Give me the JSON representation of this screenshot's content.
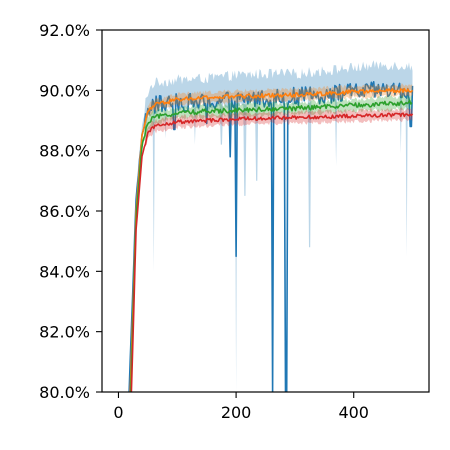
{
  "chart_data": {
    "type": "line",
    "title": "",
    "xlabel": "",
    "ylabel": "",
    "xlim": [
      -28,
      528
    ],
    "ylim": [
      80.0,
      92.0
    ],
    "x_ticks": [
      0,
      200,
      400
    ],
    "x_tick_labels": [
      "0",
      "200",
      "400"
    ],
    "y_ticks": [
      80,
      82,
      84,
      86,
      88,
      90,
      92
    ],
    "y_tick_labels": [
      "80.0%",
      "82.0%",
      "84.0%",
      "86.0%",
      "88.0%",
      "90.0%",
      "92.0%"
    ],
    "grid": false,
    "legend": "none",
    "series": [
      {
        "color": "#1f77b4",
        "band_points": [
          [
            18,
            80.0
          ],
          [
            30,
            86.6
          ],
          [
            40,
            88.7
          ],
          [
            50,
            89.5
          ],
          [
            60,
            89.8
          ],
          [
            100,
            89.9
          ],
          [
            150,
            89.95
          ],
          [
            200,
            90.05
          ],
          [
            250,
            90.1
          ],
          [
            300,
            90.1
          ],
          [
            350,
            90.2
          ],
          [
            400,
            90.3
          ],
          [
            450,
            90.4
          ],
          [
            500,
            90.35
          ]
        ],
        "band_halfwidth": 0.45,
        "line_points": [
          [
            18,
            80.0
          ],
          [
            30,
            86.4
          ],
          [
            40,
            88.5
          ],
          [
            50,
            89.3
          ],
          [
            60,
            89.5
          ],
          [
            100,
            89.6
          ],
          [
            150,
            89.6
          ],
          [
            200,
            89.7
          ],
          [
            250,
            89.75
          ],
          [
            300,
            89.8
          ],
          [
            350,
            89.85
          ],
          [
            400,
            89.95
          ],
          [
            450,
            90.0
          ],
          [
            500,
            89.95
          ]
        ],
        "line_noise": 0.3,
        "dips": [
          [
            200,
            84.5
          ],
          [
            262,
            80.0
          ],
          [
            285,
            80.0
          ],
          [
            190,
            87.8
          ],
          [
            95,
            88.7
          ],
          [
            150,
            88.9
          ],
          [
            497,
            88.8
          ]
        ],
        "band_dips": [
          [
            60,
            84.0
          ],
          [
            200,
            80.0
          ],
          [
            325,
            84.8
          ],
          [
            490,
            84.5
          ],
          [
            175,
            88.2
          ],
          [
            215,
            86.5
          ],
          [
            235,
            87.0
          ],
          [
            370,
            87.5
          ],
          [
            480,
            87.9
          ],
          [
            80,
            88.4
          ],
          [
            130,
            88.2
          ]
        ]
      },
      {
        "color": "#ff7f0e",
        "band_points": [
          [
            20,
            80.0
          ],
          [
            30,
            86.0
          ],
          [
            40,
            88.5
          ],
          [
            50,
            89.3
          ],
          [
            60,
            89.5
          ],
          [
            100,
            89.7
          ],
          [
            150,
            89.75
          ],
          [
            200,
            89.8
          ],
          [
            300,
            89.85
          ],
          [
            400,
            89.95
          ],
          [
            500,
            90.0
          ]
        ],
        "band_halfwidth": 0.18,
        "line_points": [
          [
            20,
            80.0
          ],
          [
            30,
            86.0
          ],
          [
            40,
            88.5
          ],
          [
            50,
            89.3
          ],
          [
            60,
            89.5
          ],
          [
            100,
            89.7
          ],
          [
            150,
            89.75
          ],
          [
            200,
            89.8
          ],
          [
            300,
            89.85
          ],
          [
            400,
            89.95
          ],
          [
            500,
            90.0
          ]
        ],
        "line_noise": 0.07,
        "dips": [],
        "band_dips": []
      },
      {
        "color": "#2ca02c",
        "band_points": [
          [
            21,
            80.0
          ],
          [
            30,
            85.8
          ],
          [
            40,
            88.2
          ],
          [
            50,
            88.9
          ],
          [
            60,
            89.1
          ],
          [
            100,
            89.25
          ],
          [
            150,
            89.3
          ],
          [
            200,
            89.35
          ],
          [
            300,
            89.4
          ],
          [
            400,
            89.5
          ],
          [
            500,
            89.6
          ]
        ],
        "band_halfwidth": 0.2,
        "line_points": [
          [
            21,
            80.0
          ],
          [
            30,
            85.8
          ],
          [
            40,
            88.2
          ],
          [
            50,
            88.9
          ],
          [
            60,
            89.1
          ],
          [
            100,
            89.25
          ],
          [
            150,
            89.3
          ],
          [
            200,
            89.35
          ],
          [
            300,
            89.4
          ],
          [
            400,
            89.5
          ],
          [
            500,
            89.6
          ]
        ],
        "line_noise": 0.08,
        "dips": [],
        "band_dips": []
      },
      {
        "color": "#d62728",
        "band_points": [
          [
            22,
            80.0
          ],
          [
            30,
            85.4
          ],
          [
            40,
            87.8
          ],
          [
            50,
            88.6
          ],
          [
            60,
            88.8
          ],
          [
            100,
            88.95
          ],
          [
            150,
            89.0
          ],
          [
            200,
            89.05
          ],
          [
            300,
            89.1
          ],
          [
            400,
            89.15
          ],
          [
            500,
            89.2
          ]
        ],
        "band_halfwidth": 0.18,
        "line_points": [
          [
            22,
            80.0
          ],
          [
            30,
            85.4
          ],
          [
            40,
            87.8
          ],
          [
            50,
            88.6
          ],
          [
            60,
            88.8
          ],
          [
            100,
            88.95
          ],
          [
            150,
            89.0
          ],
          [
            200,
            89.05
          ],
          [
            300,
            89.1
          ],
          [
            400,
            89.15
          ],
          [
            500,
            89.2
          ]
        ],
        "line_noise": 0.06,
        "dips": [],
        "band_dips": [
          [
            35,
            87.2
          ],
          [
            45,
            88.2
          ]
        ]
      }
    ]
  }
}
